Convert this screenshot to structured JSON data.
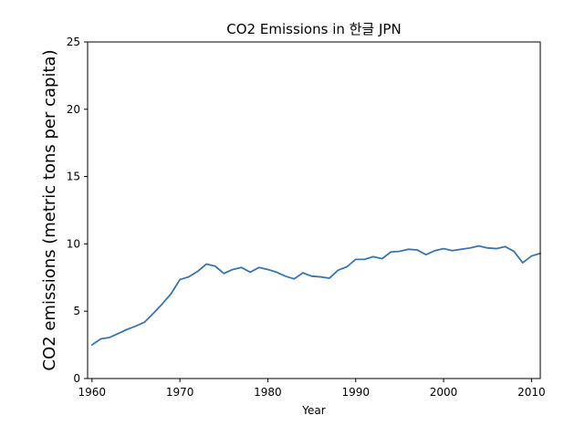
{
  "chart_data": {
    "type": "line",
    "title": "CO2 Emissions in 한글 JPN",
    "xlabel": "Year",
    "ylabel": "CO2 emissions (metric tons per capita)",
    "xlim": [
      1959.5,
      2011
    ],
    "ylim": [
      0,
      25
    ],
    "xticks": [
      1960,
      1970,
      1980,
      1990,
      2000,
      2010
    ],
    "yticks": [
      0,
      5,
      10,
      15,
      20,
      25
    ],
    "grid": false,
    "series": [
      {
        "color": "#3a75af",
        "x": [
          1960,
          1961,
          1962,
          1963,
          1964,
          1965,
          1966,
          1967,
          1968,
          1969,
          1970,
          1971,
          1972,
          1973,
          1974,
          1975,
          1976,
          1977,
          1978,
          1979,
          1980,
          1981,
          1982,
          1983,
          1984,
          1985,
          1986,
          1987,
          1988,
          1989,
          1990,
          1991,
          1992,
          1993,
          1994,
          1995,
          1996,
          1997,
          1998,
          1999,
          2000,
          2001,
          2002,
          2003,
          2004,
          2005,
          2006,
          2007,
          2008,
          2009,
          2010,
          2011
        ],
        "y": [
          2.5,
          2.95,
          3.05,
          3.35,
          3.65,
          3.9,
          4.2,
          4.85,
          5.55,
          6.3,
          7.35,
          7.55,
          7.95,
          8.5,
          8.35,
          7.8,
          8.1,
          8.25,
          7.9,
          8.25,
          8.1,
          7.9,
          7.6,
          7.4,
          7.85,
          7.6,
          7.55,
          7.45,
          8.05,
          8.3,
          8.85,
          8.85,
          9.05,
          8.9,
          9.4,
          9.45,
          9.6,
          9.55,
          9.2,
          9.5,
          9.65,
          9.5,
          9.6,
          9.7,
          9.85,
          9.7,
          9.65,
          9.8,
          9.45,
          8.6,
          9.1,
          9.3
        ]
      }
    ]
  }
}
